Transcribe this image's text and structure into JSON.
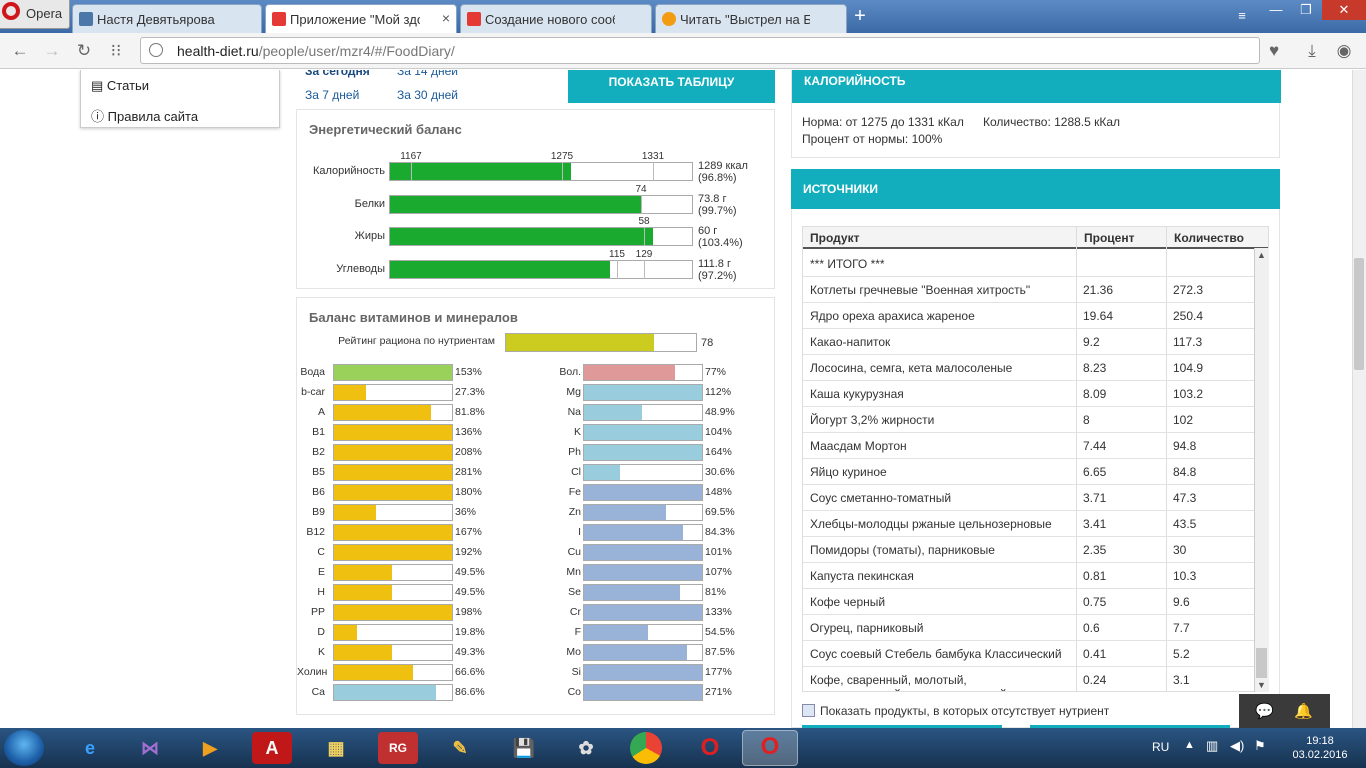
{
  "browser": {
    "opera_label": "Opera",
    "tabs": [
      {
        "label": "Настя Девятьярова",
        "color": "#4a76a8"
      },
      {
        "label": "Приложение \"Мой здоро",
        "color": "#e53935"
      },
      {
        "label": "Создание нового сообще",
        "color": "#e53935"
      },
      {
        "label": "Читать \"Выстрел на Боль",
        "color": "#f39c12"
      }
    ],
    "url_host": "health-diet.ru",
    "url_path": "/people/user/mzr4/#/FoodDiary/"
  },
  "left_menu": {
    "items": [
      {
        "label": "Статьи",
        "icon": "document-icon"
      },
      {
        "label": "Правила сайта",
        "icon": "info-icon"
      }
    ]
  },
  "period": {
    "today": "За сегодня",
    "days14": "За 14 дней",
    "days7": "За 7 дней",
    "days30": "За 30 дней",
    "show_table": "ПОКАЗАТЬ ТАБЛИЦУ"
  },
  "energy": {
    "title": "Энергетический баланс",
    "rows": [
      {
        "label": "Калорийность",
        "fill": 0.6,
        "ticks": [
          {
            "pos": 0.07,
            "label": "1167"
          },
          {
            "pos": 0.57,
            "label": "1275"
          },
          {
            "pos": 0.87,
            "label": "1331"
          }
        ],
        "value1": "1289 ккал",
        "value2": "(96.8%)"
      },
      {
        "label": "Белки",
        "fill": 0.83,
        "ticks": [
          {
            "pos": 0.83,
            "label": "74"
          }
        ],
        "value1": "73.8 г",
        "value2": "(99.7%)"
      },
      {
        "label": "Жиры",
        "fill": 0.87,
        "ticks": [
          {
            "pos": 0.84,
            "label": "58"
          }
        ],
        "value1": "60 г",
        "value2": "(103.4%)"
      },
      {
        "label": "Углеводы",
        "fill": 0.73,
        "ticks": [
          {
            "pos": 0.75,
            "label": "115"
          },
          {
            "pos": 0.84,
            "label": "129"
          }
        ],
        "value1": "111.8 г",
        "value2": "(97.2%)"
      }
    ]
  },
  "vitamins": {
    "title": "Баланс витаминов и минералов",
    "rating_label": "Рейтинг рациона по нутриентам",
    "rating_value": "78",
    "rating_fill": 0.78,
    "left": [
      {
        "label": "Вода",
        "pct": "153%",
        "fill": 1.0,
        "color": "#99d15a"
      },
      {
        "label": "b-car",
        "pct": "27.3%",
        "fill": 0.273,
        "color": "#f0c010"
      },
      {
        "label": "A",
        "pct": "81.8%",
        "fill": 0.818,
        "color": "#f0c010"
      },
      {
        "label": "B1",
        "pct": "136%",
        "fill": 1.0,
        "color": "#f0c010"
      },
      {
        "label": "B2",
        "pct": "208%",
        "fill": 1.0,
        "color": "#f0c010"
      },
      {
        "label": "B5",
        "pct": "281%",
        "fill": 1.0,
        "color": "#f0c010"
      },
      {
        "label": "B6",
        "pct": "180%",
        "fill": 1.0,
        "color": "#f0c010"
      },
      {
        "label": "B9",
        "pct": "36%",
        "fill": 0.36,
        "color": "#f0c010"
      },
      {
        "label": "B12",
        "pct": "167%",
        "fill": 1.0,
        "color": "#f0c010"
      },
      {
        "label": "C",
        "pct": "192%",
        "fill": 1.0,
        "color": "#f0c010"
      },
      {
        "label": "E",
        "pct": "49.5%",
        "fill": 0.495,
        "color": "#f0c010"
      },
      {
        "label": "H",
        "pct": "49.5%",
        "fill": 0.495,
        "color": "#f0c010"
      },
      {
        "label": "PP",
        "pct": "198%",
        "fill": 1.0,
        "color": "#f0c010"
      },
      {
        "label": "D",
        "pct": "19.8%",
        "fill": 0.198,
        "color": "#f0c010"
      },
      {
        "label": "K",
        "pct": "49.3%",
        "fill": 0.493,
        "color": "#f0c010"
      },
      {
        "label": "Холин",
        "pct": "66.6%",
        "fill": 0.666,
        "color": "#f0c010"
      },
      {
        "label": "Ca",
        "pct": "86.6%",
        "fill": 0.866,
        "color": "#99ccdd"
      }
    ],
    "right": [
      {
        "label": "Вол.",
        "pct": "77%",
        "fill": 0.77,
        "color": "#e09999"
      },
      {
        "label": "Mg",
        "pct": "112%",
        "fill": 1.0,
        "color": "#99ccdd"
      },
      {
        "label": "Na",
        "pct": "48.9%",
        "fill": 0.489,
        "color": "#99ccdd"
      },
      {
        "label": "K",
        "pct": "104%",
        "fill": 1.0,
        "color": "#99ccdd"
      },
      {
        "label": "Ph",
        "pct": "164%",
        "fill": 1.0,
        "color": "#99ccdd"
      },
      {
        "label": "Cl",
        "pct": "30.6%",
        "fill": 0.306,
        "color": "#99ccdd"
      },
      {
        "label": "Fe",
        "pct": "148%",
        "fill": 1.0,
        "color": "#99b3d8"
      },
      {
        "label": "Zn",
        "pct": "69.5%",
        "fill": 0.695,
        "color": "#99b3d8"
      },
      {
        "label": "I",
        "pct": "84.3%",
        "fill": 0.843,
        "color": "#99b3d8"
      },
      {
        "label": "Cu",
        "pct": "101%",
        "fill": 1.0,
        "color": "#99b3d8"
      },
      {
        "label": "Mn",
        "pct": "107%",
        "fill": 1.0,
        "color": "#99b3d8"
      },
      {
        "label": "Se",
        "pct": "81%",
        "fill": 0.81,
        "color": "#99b3d8"
      },
      {
        "label": "Cr",
        "pct": "133%",
        "fill": 1.0,
        "color": "#99b3d8"
      },
      {
        "label": "F",
        "pct": "54.5%",
        "fill": 0.545,
        "color": "#99b3d8"
      },
      {
        "label": "Mo",
        "pct": "87.5%",
        "fill": 0.875,
        "color": "#99b3d8"
      },
      {
        "label": "Si",
        "pct": "177%",
        "fill": 1.0,
        "color": "#99b3d8"
      },
      {
        "label": "Co",
        "pct": "271%",
        "fill": 1.0,
        "color": "#99b3d8"
      }
    ]
  },
  "calories": {
    "title": "КАЛОРИЙНОСТЬ",
    "norm": "Норма: от 1275 до 1331 кКал",
    "amount": "Количество: 1288.5 кКал",
    "percent": "Процент от нормы: 100%"
  },
  "sources": {
    "title": "ИСТОЧНИКИ",
    "headers": [
      "Продукт",
      "Процент",
      "Количество"
    ],
    "rows": [
      [
        "*** ИТОГО ***",
        "",
        ""
      ],
      [
        "Котлеты гречневые \"Военная хитрость\"",
        "21.36",
        "272.3"
      ],
      [
        "Ядро ореха арахиса жареное",
        "19.64",
        "250.4"
      ],
      [
        "Какао-напиток",
        "9.2",
        "117.3"
      ],
      [
        "Лососина, семга, кета малосоленые",
        "8.23",
        "104.9"
      ],
      [
        "Каша кукурузная",
        "8.09",
        "103.2"
      ],
      [
        "Йогурт 3,2% жирности",
        "8",
        "102"
      ],
      [
        "Маасдам Мортон",
        "7.44",
        "94.8"
      ],
      [
        "Яйцо куриное",
        "6.65",
        "84.8"
      ],
      [
        "Соус сметанно-томатный",
        "3.71",
        "47.3"
      ],
      [
        "Хлебцы-молодцы ржаные цельнозерновые",
        "3.41",
        "43.5"
      ],
      [
        "Помидоры (томаты), парниковые",
        "2.35",
        "30"
      ],
      [
        "Капуста пекинская",
        "0.81",
        "10.3"
      ],
      [
        "Кофе черный",
        "0.75",
        "9.6"
      ],
      [
        "Огурец, парниковый",
        "0.6",
        "7.7"
      ],
      [
        "Соус соевый Стебель бамбука Классический",
        "0.41",
        "5.2"
      ],
      [
        "Кофе, сваренный, молотый,",
        "0.24",
        "3.1"
      ]
    ],
    "last_row_line2": "приготовленный на водопроводной воде",
    "checkbox_label": "Показать продукты, в которых отсутствует нутриент"
  },
  "taskbar": {
    "lang": "RU",
    "time": "19:18",
    "date": "03.02.2016"
  }
}
